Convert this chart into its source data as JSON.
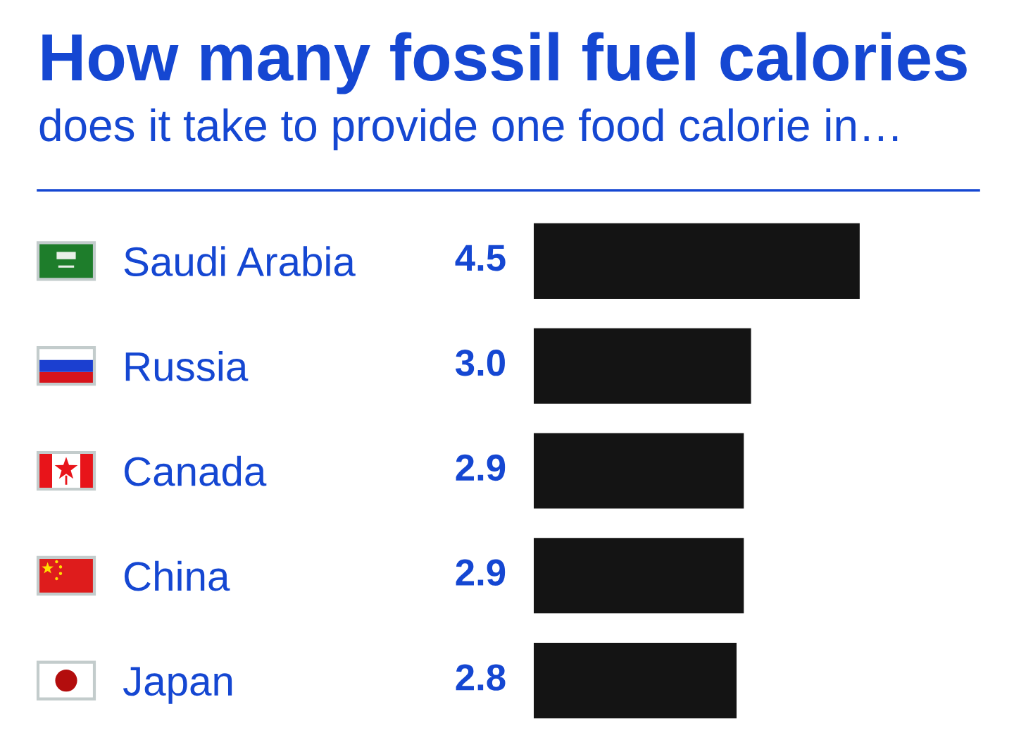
{
  "chart_data": {
    "type": "bar",
    "orientation": "horizontal",
    "title": "How many fossil fuel calories",
    "subtitle": "does it take to provide one food calorie in…",
    "categories": [
      "Saudi Arabia",
      "Russia",
      "Canada",
      "China",
      "Japan"
    ],
    "values": [
      4.5,
      3.0,
      2.9,
      2.9,
      2.8
    ],
    "value_labels": [
      "4.5",
      "3.0",
      "2.9",
      "2.9",
      "2.8"
    ],
    "color": "#141414",
    "tick_labels": "y"
  }
}
